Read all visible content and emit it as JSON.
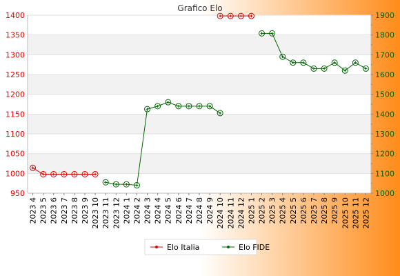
{
  "chart_data": {
    "type": "line",
    "title": "Grafico Elo",
    "categories": [
      "2023 4",
      "2023 5",
      "2023 6",
      "2023 7",
      "2023 8",
      "2023 9",
      "2023 10",
      "2023 11",
      "2023 12",
      "2024 1",
      "2024 2",
      "2024 3",
      "2024 4",
      "2024 5",
      "2024 6",
      "2024 7",
      "2024 8",
      "2024 9",
      "2024 10",
      "2024 11",
      "2024 12",
      "2025 1",
      "2025 2",
      "2025 3",
      "2025 4",
      "2025 5",
      "2025 6",
      "2025 7",
      "2025 8",
      "2025 9",
      "2025 10",
      "2025 11",
      "2025 12"
    ],
    "y_left": {
      "ylim": [
        950,
        1400
      ],
      "ticks": [
        "950",
        "1000",
        "1050",
        "1100",
        "1150",
        "1200",
        "1250",
        "1300",
        "1350",
        "1400"
      ],
      "color": "#dd0000"
    },
    "y_right": {
      "ylim": [
        1000,
        1900
      ],
      "ticks": [
        "1000",
        "1100",
        "1200",
        "1300",
        "1400",
        "1500",
        "1600",
        "1700",
        "1800",
        "1900"
      ],
      "color": "#006600"
    },
    "grid": true,
    "legend_position": "bottom-center",
    "series": [
      {
        "name": "Elo Italia",
        "axis": "left",
        "color": "#dd0000",
        "values": [
          1014,
          998,
          998,
          998,
          998,
          998,
          998,
          null,
          null,
          null,
          null,
          null,
          null,
          null,
          null,
          null,
          null,
          null,
          1398,
          1398,
          1398,
          1398,
          null,
          null,
          null,
          null,
          null,
          null,
          null,
          null,
          null,
          null,
          null
        ]
      },
      {
        "name": "Elo FIDE",
        "axis": "right",
        "color": "#006600",
        "values": [
          null,
          null,
          null,
          null,
          null,
          null,
          null,
          1055,
          1045,
          1045,
          1040,
          1425,
          1440,
          1460,
          1440,
          1440,
          1440,
          1440,
          1405,
          null,
          null,
          null,
          1808,
          1808,
          1690,
          1660,
          1660,
          1630,
          1630,
          1660,
          1620,
          1660,
          1630
        ]
      }
    ]
  }
}
